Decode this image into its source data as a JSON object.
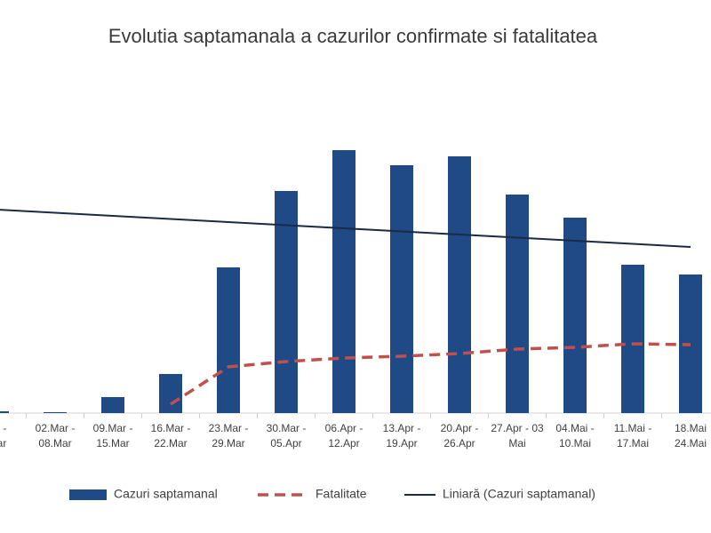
{
  "chart_data": {
    "type": "bar",
    "title": "Evolutia saptamanala a cazurilor confirmate si fatalitatea",
    "categories": [
      [
        "eb -",
        "Mar"
      ],
      [
        "02.Mar -",
        "08.Mar"
      ],
      [
        "09.Mar -",
        "15.Mar"
      ],
      [
        "16.Mar -",
        "22.Mar"
      ],
      [
        "23.Mar -",
        "29.Mar"
      ],
      [
        "30.Mar -",
        "05.Apr"
      ],
      [
        "06.Apr -",
        "12.Apr"
      ],
      [
        "13.Apr -",
        "19.Apr"
      ],
      [
        "20.Apr -",
        "26.Apr"
      ],
      [
        "27.Apr - 03",
        "Mai"
      ],
      [
        "04.Mai -",
        "10.Mai"
      ],
      [
        "11.Mai -",
        "17.Mai"
      ],
      [
        "18.Mai",
        "24.Mai"
      ]
    ],
    "ylim": [
      0,
      300
    ],
    "series": [
      {
        "name": "Cazuri saptamanal",
        "type": "bar",
        "color": "#1f4a86",
        "values": [
          2,
          1,
          18,
          44,
          164,
          250,
          296,
          279,
          289,
          246,
          220,
          167,
          156
        ]
      },
      {
        "name": "Fatalitate",
        "type": "line",
        "dashed": true,
        "color": "#c0504d",
        "values": [
          null,
          null,
          null,
          10,
          52,
          58,
          62,
          64,
          67,
          72,
          74,
          78,
          77
        ]
      },
      {
        "name": "Liniară (Cazuri saptamanal)",
        "type": "line",
        "dashed": false,
        "color": "#1b2a45",
        "values": [
          229,
          225.5,
          222,
          218.5,
          215,
          211.5,
          208,
          204.5,
          201,
          197.5,
          194,
          190.5,
          187
        ]
      }
    ]
  }
}
